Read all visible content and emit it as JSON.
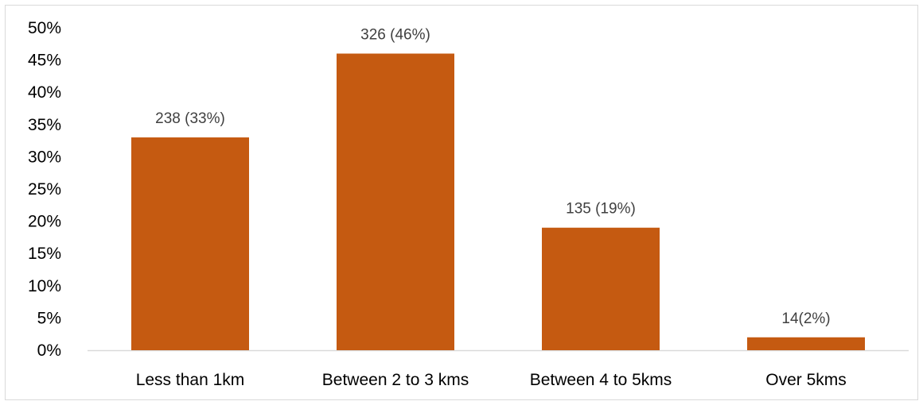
{
  "chart_data": {
    "type": "bar",
    "title": "",
    "xlabel": "",
    "ylabel": "",
    "categories": [
      "Less than 1km",
      "Between 2 to 3 kms",
      "Between 4 to 5kms",
      "Over 5kms"
    ],
    "values": [
      33,
      46,
      19,
      2
    ],
    "data_labels": [
      "238 (33%)",
      "326 (46%)",
      "135 (19%)",
      "14(2%)"
    ],
    "ylim": [
      0,
      50
    ],
    "y_ticks": [
      0,
      5,
      10,
      15,
      20,
      25,
      30,
      35,
      40,
      45,
      50
    ],
    "y_tick_labels": [
      "0%",
      "5%",
      "10%",
      "15%",
      "20%",
      "25%",
      "30%",
      "35%",
      "40%",
      "45%",
      "50%"
    ],
    "grid": false,
    "legend": "none",
    "bar_color": "#C55A11",
    "axis_color": "#D9D9D9"
  }
}
